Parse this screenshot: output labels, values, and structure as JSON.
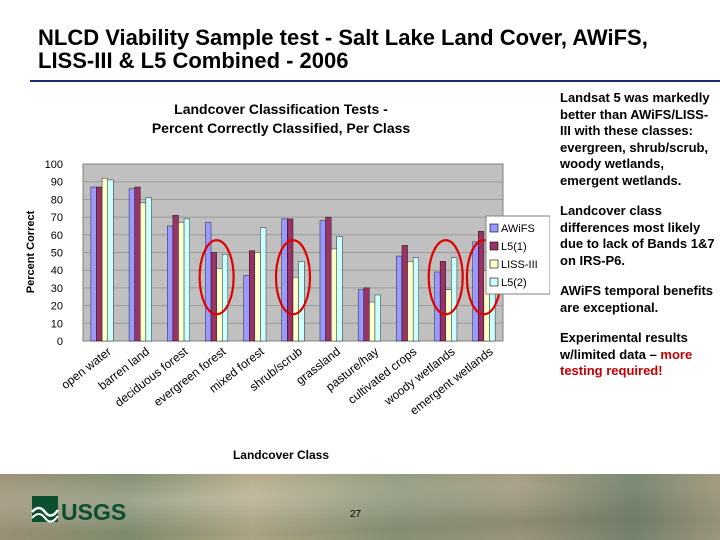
{
  "slide": {
    "title_line1": "NLCD Viability Sample test - Salt Lake Land Cover, AWiFS,",
    "title_line2": "LISS-III & L5 Combined - 2006",
    "page_number": "27",
    "logo_text": "USGS"
  },
  "notes": [
    {
      "text": "Landsat 5 was markedly better than AWiFS/LISS-III with these classes: evergreen, shrub/scrub, woody wetlands, emergent wetlands."
    },
    {
      "text": "Landcover class differences most likely due to lack of Bands 1&7 on IRS-P6."
    },
    {
      "text": "AWiFS temporal benefits are exceptional."
    },
    {
      "text": "Experimental results w/limited data – ",
      "highlight": "more testing required!"
    }
  ],
  "colors": {
    "title_rule": "#1a2a6c",
    "annotation_circle": "#e00000",
    "plot_background": "#c0c0c0",
    "highlight_text": "#c00000"
  },
  "chart_data": {
    "type": "bar",
    "title": "Landcover Classification Tests - Percent Correctly Classified, Per Class",
    "title_line1": "Landcover Classification Tests -",
    "title_line2": "Percent Correctly Classified, Per Class",
    "xlabel": "Landcover Class",
    "ylabel": "Percent Correct",
    "ylim": [
      0,
      100
    ],
    "yticks": [
      0,
      10,
      20,
      30,
      40,
      50,
      60,
      70,
      80,
      90,
      100
    ],
    "grid": true,
    "legend_position": "right",
    "categories": [
      "open water",
      "barren land",
      "deciduous forest",
      "evergreen forest",
      "mixed forest",
      "shrub/scrub",
      "grassland",
      "pasture/hay",
      "cultivated crops",
      "woody wetlands",
      "emergent wetlands"
    ],
    "series": [
      {
        "name": "AWiFS",
        "color": "#9999ff",
        "values": [
          87,
          86,
          65,
          67,
          37,
          69,
          68,
          29,
          48,
          39,
          56
        ]
      },
      {
        "name": "L5(1)",
        "color": "#993366",
        "values": [
          87,
          87,
          71,
          50,
          51,
          69,
          70,
          30,
          54,
          45,
          62
        ]
      },
      {
        "name": "LISS-III",
        "color": "#ffffcc",
        "values": [
          92,
          78,
          67,
          41,
          50,
          36,
          52,
          22,
          45,
          29,
          40
        ]
      },
      {
        "name": "L5(2)",
        "color": "#ccffff",
        "values": [
          91,
          81,
          69,
          49,
          64,
          45,
          59,
          26,
          47,
          47,
          63
        ]
      }
    ],
    "highlighted_categories": [
      "evergreen forest",
      "shrub/scrub",
      "woody wetlands",
      "emergent wetlands"
    ]
  }
}
